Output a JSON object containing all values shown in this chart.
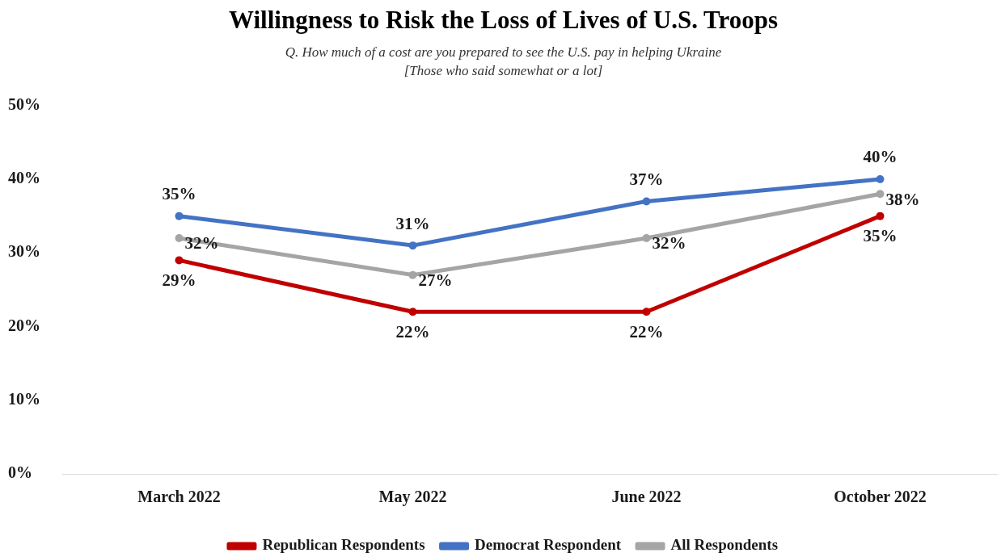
{
  "chart_data": {
    "type": "line",
    "title": "Willingness to Risk the Loss of Lives of U.S. Troops",
    "subtitle": "Q. How much of a cost are you prepared to see the U.S. pay in helping Ukraine\n[Those who said somewhat or a lot]",
    "categories": [
      "March 2022",
      "May 2022",
      "June 2022",
      "October 2022"
    ],
    "series": [
      {
        "name": "Republican Respondents",
        "color": "#c00000",
        "values": [
          29,
          22,
          22,
          35
        ],
        "value_labels": [
          "29%",
          "22%",
          "22%",
          "35%"
        ]
      },
      {
        "name": "Democrat Respondent",
        "color": "#4472c4",
        "values": [
          35,
          31,
          37,
          40
        ],
        "value_labels": [
          "35%",
          "31%",
          "37%",
          "40%"
        ]
      },
      {
        "name": "All Respondents",
        "color": "#a5a5a5",
        "values": [
          32,
          27,
          32,
          38
        ],
        "value_labels": [
          "32%",
          "27%",
          "32%",
          "38%"
        ]
      }
    ],
    "ylim": [
      0,
      50
    ],
    "yticks": [
      {
        "value": 0,
        "label": "0%"
      },
      {
        "value": 10,
        "label": "10%"
      },
      {
        "value": 20,
        "label": "20%"
      },
      {
        "value": 30,
        "label": "30%"
      },
      {
        "value": 40,
        "label": "40%"
      },
      {
        "value": 50,
        "label": "50%"
      }
    ],
    "grid": false,
    "legend": "bottom",
    "marker": "circle",
    "line_style": "solid"
  }
}
